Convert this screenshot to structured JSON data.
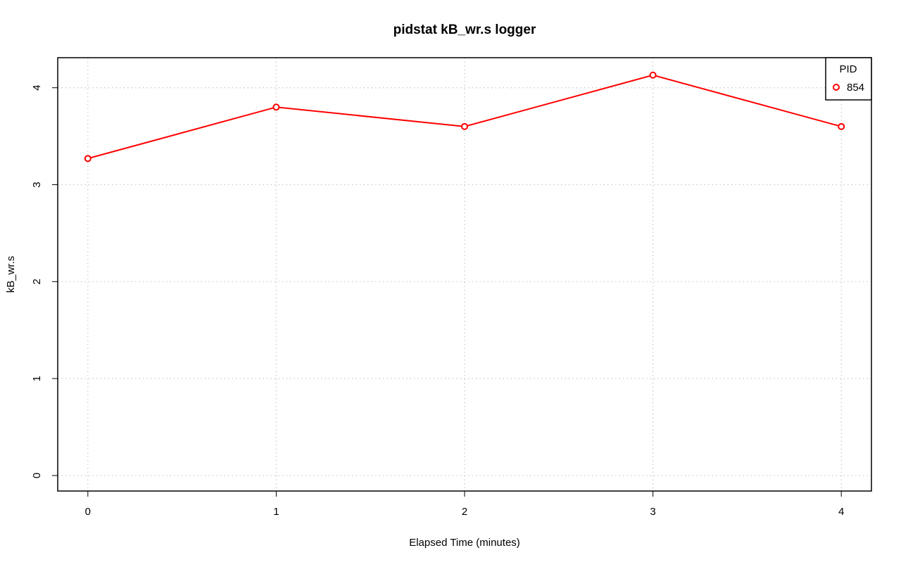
{
  "chart_data": {
    "type": "line",
    "title": "pidstat kB_wr.s logger",
    "xlabel": "Elapsed Time (minutes)",
    "ylabel": "kB_wr.s",
    "x": [
      0,
      1,
      2,
      3,
      4
    ],
    "xlim": [
      -0.16,
      4.16
    ],
    "ylim": [
      -0.16,
      4.31
    ],
    "xticks": [
      "0",
      "1",
      "2",
      "3",
      "4"
    ],
    "yticks": [
      "0",
      "1",
      "2",
      "3",
      "4"
    ],
    "grid": true,
    "legend": {
      "title": "PID",
      "position": "top-right"
    },
    "series": [
      {
        "name": "854",
        "color": "#ff0000",
        "marker": "open-circle",
        "values": [
          3.27,
          3.8,
          3.6,
          4.13,
          3.6
        ]
      }
    ]
  }
}
